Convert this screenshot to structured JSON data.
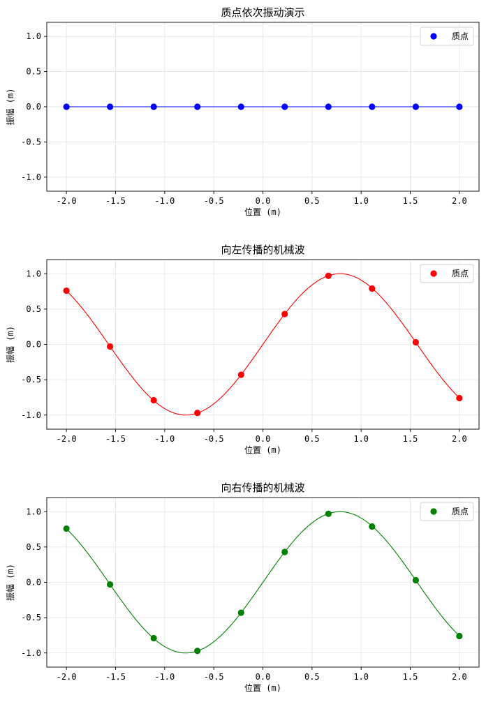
{
  "chart_data": [
    {
      "type": "line",
      "title": "质点依次振动演示",
      "xlabel": "位置 (m)",
      "ylabel": "振幅 (m)",
      "xlim": [
        -2.2,
        2.2
      ],
      "ylim": [
        -1.2,
        1.2
      ],
      "xticks": [
        -2.0,
        -1.5,
        -1.0,
        -0.5,
        0.0,
        0.5,
        1.0,
        1.5,
        2.0
      ],
      "yticks": [
        -1.0,
        -0.5,
        0.0,
        0.5,
        1.0
      ],
      "xtick_labels": [
        "-2.0",
        "-1.5",
        "-1.0",
        "-0.5",
        "0.0",
        "0.5",
        "1.0",
        "1.5",
        "2.0"
      ],
      "ytick_labels": [
        "-1.0",
        "-0.5",
        "0.0",
        "0.5",
        "1.0"
      ],
      "grid": true,
      "legend": "top-right",
      "color": "#0000ff",
      "series": [
        {
          "name": "质点",
          "x": [
            -2.0,
            -1.556,
            -1.111,
            -0.667,
            -0.222,
            0.222,
            0.667,
            1.111,
            1.556,
            2.0
          ],
          "y": [
            0,
            0,
            0,
            0,
            0,
            0,
            0,
            0,
            0,
            0
          ]
        }
      ],
      "curve": {
        "amplitude": 0,
        "wavenumber": 2.0,
        "phase": 0
      }
    },
    {
      "type": "line",
      "title": "向左传播的机械波",
      "xlabel": "位置 (m)",
      "ylabel": "振幅 (m)",
      "xlim": [
        -2.2,
        2.2
      ],
      "ylim": [
        -1.2,
        1.2
      ],
      "xticks": [
        -2.0,
        -1.5,
        -1.0,
        -0.5,
        0.0,
        0.5,
        1.0,
        1.5,
        2.0
      ],
      "yticks": [
        -1.0,
        -0.5,
        0.0,
        0.5,
        1.0
      ],
      "xtick_labels": [
        "-2.0",
        "-1.5",
        "-1.0",
        "-0.5",
        "0.0",
        "0.5",
        "1.0",
        "1.5",
        "2.0"
      ],
      "ytick_labels": [
        "-1.0",
        "-0.5",
        "0.0",
        "0.5",
        "1.0"
      ],
      "grid": true,
      "legend": "top-right",
      "color": "#ff0000",
      "series": [
        {
          "name": "质点",
          "x": [
            -2.0,
            -1.556,
            -1.111,
            -0.667,
            -0.222,
            0.222,
            0.667,
            1.111,
            1.556,
            2.0
          ],
          "y": [
            0.76,
            -0.03,
            -0.79,
            -0.97,
            -0.43,
            0.43,
            0.97,
            0.79,
            0.03,
            -0.76
          ]
        }
      ],
      "curve": {
        "amplitude": 1,
        "wavenumber": 2.0,
        "phase": 0
      }
    },
    {
      "type": "line",
      "title": "向右传播的机械波",
      "xlabel": "位置 (m)",
      "ylabel": "振幅 (m)",
      "xlim": [
        -2.2,
        2.2
      ],
      "ylim": [
        -1.2,
        1.2
      ],
      "xticks": [
        -2.0,
        -1.5,
        -1.0,
        -0.5,
        0.0,
        0.5,
        1.0,
        1.5,
        2.0
      ],
      "yticks": [
        -1.0,
        -0.5,
        0.0,
        0.5,
        1.0
      ],
      "xtick_labels": [
        "-2.0",
        "-1.5",
        "-1.0",
        "-0.5",
        "0.0",
        "0.5",
        "1.0",
        "1.5",
        "2.0"
      ],
      "ytick_labels": [
        "-1.0",
        "-0.5",
        "0.0",
        "0.5",
        "1.0"
      ],
      "grid": true,
      "legend": "top-right",
      "color": "#008000",
      "series": [
        {
          "name": "质点",
          "x": [
            -2.0,
            -1.556,
            -1.111,
            -0.667,
            -0.222,
            0.222,
            0.667,
            1.111,
            1.556,
            2.0
          ],
          "y": [
            0.76,
            -0.03,
            -0.79,
            -0.97,
            -0.43,
            0.43,
            0.97,
            0.79,
            0.03,
            -0.76
          ]
        }
      ],
      "curve": {
        "amplitude": 1,
        "wavenumber": 2.0,
        "phase": 0
      }
    }
  ]
}
